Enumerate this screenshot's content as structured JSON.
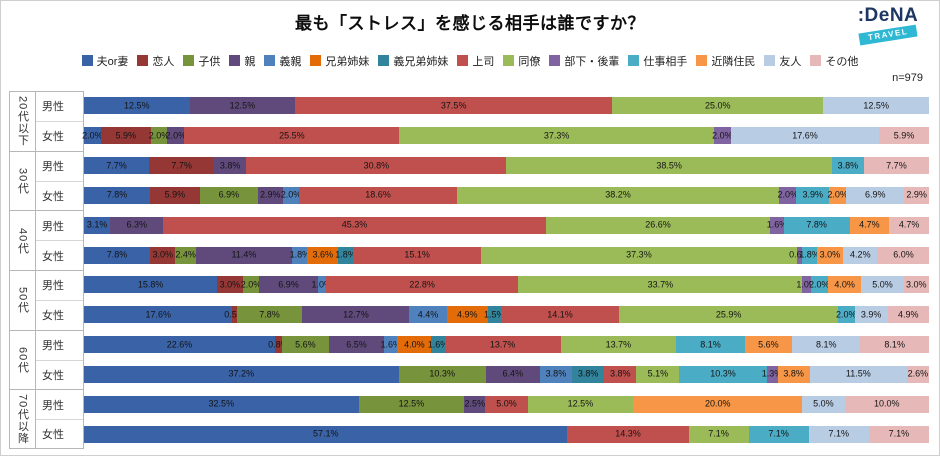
{
  "title": "最も「ストレス」を感じる相手は誰ですか？",
  "sample_size": "n=979",
  "logo": {
    "brand": ":DeNA",
    "sub": "TRAVEL"
  },
  "chart_data": {
    "type": "bar",
    "stacked": true,
    "orientation": "horizontal",
    "unit": "%",
    "x_range": [
      0,
      100
    ],
    "grid": false,
    "legend_position": "top",
    "legend": [
      {
        "label": "夫or妻",
        "color": "#3A62A7"
      },
      {
        "label": "恋人",
        "color": "#953735"
      },
      {
        "label": "子供",
        "color": "#77933C"
      },
      {
        "label": "親",
        "color": "#604A7B"
      },
      {
        "label": "義親",
        "color": "#4F81BD"
      },
      {
        "label": "兄弟姉妹",
        "color": "#E36C09"
      },
      {
        "label": "義兄弟姉妹",
        "color": "#31849B"
      },
      {
        "label": "上司",
        "color": "#C0504D"
      },
      {
        "label": "同僚",
        "color": "#9BBB59"
      },
      {
        "label": "部下・後輩",
        "color": "#8064A2"
      },
      {
        "label": "仕事相手",
        "color": "#4BACC6"
      },
      {
        "label": "近隣住民",
        "color": "#F79646"
      },
      {
        "label": "友人",
        "color": "#B8CCE4"
      },
      {
        "label": "その他",
        "color": "#E6B9B8"
      }
    ],
    "groups": [
      {
        "age": "20代以下",
        "rows": [
          {
            "gender": "男性",
            "segments": [
              [
                "夫or妻",
                12.5
              ],
              [
                "親",
                12.5
              ],
              [
                "上司",
                37.5
              ],
              [
                "同僚",
                25.0
              ],
              [
                "友人",
                12.5
              ]
            ]
          },
          {
            "gender": "女性",
            "segments": [
              [
                "夫or妻",
                2.0
              ],
              [
                "恋人",
                5.9
              ],
              [
                "子供",
                2.0
              ],
              [
                "親",
                2.0
              ],
              [
                "上司",
                25.5
              ],
              [
                "同僚",
                37.3
              ],
              [
                "部下・後輩",
                2.0
              ],
              [
                "友人",
                17.6
              ],
              [
                "その他",
                5.9
              ]
            ]
          }
        ]
      },
      {
        "age": "30代",
        "rows": [
          {
            "gender": "男性",
            "segments": [
              [
                "夫or妻",
                7.7
              ],
              [
                "恋人",
                7.7
              ],
              [
                "親",
                3.8
              ],
              [
                "上司",
                30.8
              ],
              [
                "同僚",
                38.5
              ],
              [
                "仕事相手",
                3.8
              ],
              [
                "その他",
                7.7
              ]
            ]
          },
          {
            "gender": "女性",
            "segments": [
              [
                "夫or妻",
                7.8
              ],
              [
                "恋人",
                5.9
              ],
              [
                "子供",
                6.9
              ],
              [
                "親",
                2.9
              ],
              [
                "義親",
                2.0
              ],
              [
                "上司",
                18.6
              ],
              [
                "同僚",
                38.2
              ],
              [
                "部下・後輩",
                2.0
              ],
              [
                "仕事相手",
                3.9
              ],
              [
                "近隣住民",
                2.0
              ],
              [
                "友人",
                6.9
              ],
              [
                "その他",
                2.9
              ]
            ]
          }
        ]
      },
      {
        "age": "40代",
        "rows": [
          {
            "gender": "男性",
            "segments": [
              [
                "夫or妻",
                3.1
              ],
              [
                "親",
                6.3
              ],
              [
                "上司",
                45.3
              ],
              [
                "同僚",
                26.6
              ],
              [
                "部下・後輩",
                1.6
              ],
              [
                "仕事相手",
                7.8
              ],
              [
                "近隣住民",
                4.7
              ],
              [
                "その他",
                4.7
              ]
            ]
          },
          {
            "gender": "女性",
            "segments": [
              [
                "夫or妻",
                7.8
              ],
              [
                "恋人",
                3.0
              ],
              [
                "子供",
                2.4
              ],
              [
                "親",
                11.4
              ],
              [
                "義親",
                1.8
              ],
              [
                "兄弟姉妹",
                3.6
              ],
              [
                "義兄弟姉妹",
                1.8
              ],
              [
                "上司",
                15.1
              ],
              [
                "同僚",
                37.3
              ],
              [
                "部下・後輩",
                0.6
              ],
              [
                "仕事相手",
                1.8
              ],
              [
                "近隣住民",
                3.0
              ],
              [
                "友人",
                4.2
              ],
              [
                "その他",
                6.0
              ]
            ]
          }
        ]
      },
      {
        "age": "50代",
        "rows": [
          {
            "gender": "男性",
            "segments": [
              [
                "夫or妻",
                15.8
              ],
              [
                "恋人",
                3.0
              ],
              [
                "子供",
                2.0
              ],
              [
                "親",
                6.9
              ],
              [
                "義親",
                1.0
              ],
              [
                "上司",
                22.8
              ],
              [
                "同僚",
                33.7
              ],
              [
                "部下・後輩",
                1.0
              ],
              [
                "仕事相手",
                2.0
              ],
              [
                "近隣住民",
                4.0
              ],
              [
                "友人",
                5.0
              ],
              [
                "その他",
                3.0
              ]
            ]
          },
          {
            "gender": "女性",
            "segments": [
              [
                "夫or妻",
                17.6
              ],
              [
                "恋人",
                0.5
              ],
              [
                "子供",
                7.8
              ],
              [
                "親",
                12.7
              ],
              [
                "義親",
                4.4
              ],
              [
                "兄弟姉妹",
                4.9
              ],
              [
                "義兄弟姉妹",
                1.5
              ],
              [
                "上司",
                14.1
              ],
              [
                "同僚",
                25.9
              ],
              [
                "仕事相手",
                2.0
              ],
              [
                "友人",
                3.9
              ],
              [
                "その他",
                4.9
              ]
            ]
          }
        ]
      },
      {
        "age": "60代",
        "rows": [
          {
            "gender": "男性",
            "segments": [
              [
                "夫or妻",
                22.6
              ],
              [
                "恋人",
                0.8
              ],
              [
                "子供",
                5.6
              ],
              [
                "親",
                6.5
              ],
              [
                "義親",
                1.6
              ],
              [
                "兄弟姉妹",
                4.0
              ],
              [
                "義兄弟姉妹",
                1.6
              ],
              [
                "上司",
                13.7
              ],
              [
                "同僚",
                13.7
              ],
              [
                "仕事相手",
                8.1
              ],
              [
                "近隣住民",
                5.6
              ],
              [
                "友人",
                8.1
              ],
              [
                "その他",
                8.1
              ]
            ]
          },
          {
            "gender": "女性",
            "segments": [
              [
                "夫or妻",
                37.2
              ],
              [
                "子供",
                10.3
              ],
              [
                "親",
                6.4
              ],
              [
                "義親",
                3.8
              ],
              [
                "義兄弟姉妹",
                3.8
              ],
              [
                "上司",
                3.8
              ],
              [
                "同僚",
                5.1
              ],
              [
                "仕事相手",
                10.3
              ],
              [
                "部下・後輩",
                1.3
              ],
              [
                "近隣住民",
                3.8
              ],
              [
                "友人",
                11.5
              ],
              [
                "その他",
                2.6
              ]
            ]
          }
        ]
      },
      {
        "age": "70代以降",
        "rows": [
          {
            "gender": "男性",
            "segments": [
              [
                "夫or妻",
                32.5
              ],
              [
                "子供",
                12.5
              ],
              [
                "親",
                2.5
              ],
              [
                "上司",
                5.0
              ],
              [
                "同僚",
                12.5
              ],
              [
                "近隣住民",
                20.0
              ],
              [
                "友人",
                5.0
              ],
              [
                "その他",
                10.0
              ]
            ]
          },
          {
            "gender": "女性",
            "segments": [
              [
                "夫or妻",
                57.1
              ],
              [
                "上司",
                14.3
              ],
              [
                "同僚",
                7.1
              ],
              [
                "仕事相手",
                7.1
              ],
              [
                "友人",
                7.1
              ],
              [
                "その他",
                7.1
              ]
            ]
          }
        ]
      }
    ]
  }
}
